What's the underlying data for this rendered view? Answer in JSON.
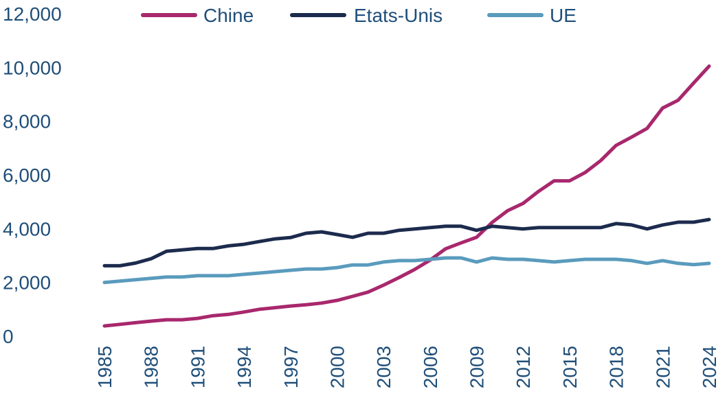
{
  "chart_data": {
    "type": "line",
    "title": "",
    "xlabel": "",
    "ylabel": "",
    "ylim": [
      0,
      12000
    ],
    "yticks": [
      "0",
      "2,000",
      "4,000",
      "6,000",
      "8,000",
      "10,000",
      "12,000"
    ],
    "ytick_values": [
      0,
      2000,
      4000,
      6000,
      8000,
      10000,
      12000
    ],
    "x": [
      1985,
      1986,
      1987,
      1988,
      1989,
      1990,
      1991,
      1992,
      1993,
      1994,
      1995,
      1996,
      1997,
      1998,
      1999,
      2000,
      2001,
      2002,
      2003,
      2004,
      2005,
      2006,
      2007,
      2008,
      2009,
      2010,
      2011,
      2012,
      2013,
      2014,
      2015,
      2016,
      2017,
      2018,
      2019,
      2020,
      2021,
      2022,
      2023,
      2024
    ],
    "xticks": [
      "1985",
      "1988",
      "1991",
      "1994",
      "1997",
      "2000",
      "2003",
      "2006",
      "2009",
      "2012",
      "2015",
      "2018",
      "2021",
      "2024"
    ],
    "xtick_values": [
      1985,
      1988,
      1991,
      1994,
      1997,
      2000,
      2003,
      2006,
      2009,
      2012,
      2015,
      2018,
      2021,
      2024
    ],
    "grid": false,
    "legend_position": "top",
    "series": [
      {
        "name": "Chine",
        "color": "#a8286d",
        "values": [
          380,
          440,
          500,
          560,
          610,
          610,
          660,
          760,
          810,
          900,
          1000,
          1060,
          1120,
          1170,
          1230,
          1330,
          1480,
          1640,
          1900,
          2180,
          2480,
          2830,
          3250,
          3470,
          3680,
          4230,
          4670,
          4940,
          5390,
          5780,
          5780,
          6090,
          6530,
          7100,
          7410,
          7730,
          8490,
          8780,
          9420,
          10050
        ]
      },
      {
        "name": "Etats-Unis",
        "color": "#1c2b4d",
        "values": [
          2620,
          2620,
          2720,
          2880,
          3160,
          3210,
          3260,
          3260,
          3360,
          3420,
          3520,
          3620,
          3670,
          3830,
          3880,
          3780,
          3680,
          3830,
          3830,
          3940,
          3990,
          4040,
          4090,
          4090,
          3940,
          4090,
          4040,
          3990,
          4040,
          4040,
          4040,
          4040,
          4040,
          4190,
          4140,
          3990,
          4140,
          4240,
          4240,
          4340
        ]
      },
      {
        "name": "UE",
        "color": "#5a9bbd",
        "values": [
          2000,
          2050,
          2100,
          2150,
          2200,
          2200,
          2250,
          2250,
          2250,
          2300,
          2350,
          2400,
          2450,
          2500,
          2500,
          2550,
          2650,
          2650,
          2760,
          2810,
          2810,
          2860,
          2910,
          2910,
          2760,
          2910,
          2860,
          2860,
          2810,
          2760,
          2810,
          2860,
          2860,
          2860,
          2810,
          2710,
          2810,
          2710,
          2660,
          2710
        ]
      }
    ]
  }
}
